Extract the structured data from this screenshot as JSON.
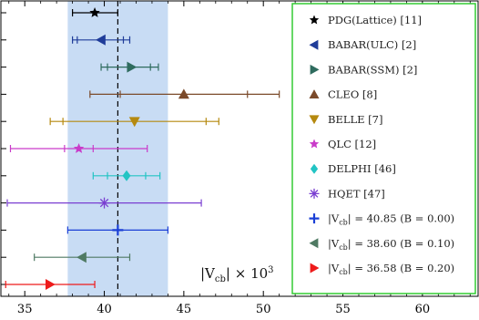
{
  "chart_data": {
    "type": "scatter",
    "xlim": [
      33.5,
      63.5
    ],
    "xticks": [
      35,
      40,
      45,
      50,
      55,
      60
    ],
    "band": {
      "from": 37.7,
      "to": 44.0,
      "color": "#c8dcf4"
    },
    "reference_line": {
      "x": 40.85
    },
    "annotation": "|V_cb| × 10^3",
    "legend": {
      "position": "right",
      "border_color": "#33cc33"
    },
    "series": [
      {
        "name": "PDG(Lattice) [11]",
        "marker": "star",
        "color": "#000000",
        "value": 39.4,
        "err_low": 38.0,
        "err_high": 40.85,
        "inner_low": null,
        "inner_high": null
      },
      {
        "name": "BABAR(ULC) [2]",
        "marker": "triangle-left",
        "color": "#1f3c99",
        "value": 39.8,
        "err_low": 38.0,
        "err_high": 41.6,
        "inner_low": 38.3,
        "inner_high": 41.2
      },
      {
        "name": "BABAR(SSM) [2]",
        "marker": "triangle-right",
        "color": "#2e6b5e",
        "value": 41.7,
        "err_low": 39.8,
        "err_high": 43.4,
        "inner_low": 40.2,
        "inner_high": 42.9
      },
      {
        "name": "CLEO [8]",
        "marker": "triangle-up",
        "color": "#7b4a2a",
        "value": 45.0,
        "err_low": 39.1,
        "err_high": 51.0,
        "inner_low": 41.0,
        "inner_high": 49.0
      },
      {
        "name": "BELLE [7]",
        "marker": "triangle-down",
        "color": "#b5890f",
        "value": 41.9,
        "err_low": 36.6,
        "err_high": 47.2,
        "inner_low": 37.4,
        "inner_high": 46.4
      },
      {
        "name": "QLC [12]",
        "marker": "star",
        "color": "#c93bc9",
        "value": 38.4,
        "err_low": 34.1,
        "err_high": 42.7,
        "inner_low": 37.5,
        "inner_high": 39.3
      },
      {
        "name": "DELPHI [46]",
        "marker": "diamond",
        "color": "#22c4c4",
        "value": 41.4,
        "err_low": 39.3,
        "err_high": 43.5,
        "inner_low": 40.2,
        "inner_high": 42.6
      },
      {
        "name": "HQET [47]",
        "marker": "asterisk",
        "color": "#7a3fd1",
        "value": 40.0,
        "err_low": 33.9,
        "err_high": 46.1,
        "inner_low": null,
        "inner_high": null
      },
      {
        "name": "|V_cb| = 40.85 (B = 0.00)",
        "marker": "plus",
        "color": "#1a3fd6",
        "value": 40.85,
        "err_low": 37.7,
        "err_high": 44.0,
        "inner_low": null,
        "inner_high": null
      },
      {
        "name": "|V_cb| = 38.60 (B = 0.10)",
        "marker": "triangle-left",
        "color": "#4f7a63",
        "value": 38.6,
        "err_low": 35.6,
        "err_high": 41.6,
        "inner_low": null,
        "inner_high": null
      },
      {
        "name": "|V_cb| = 36.58 (B = 0.20)",
        "marker": "triangle-right",
        "color": "#ee1b1b",
        "value": 36.58,
        "err_low": 33.8,
        "err_high": 39.4,
        "inner_low": null,
        "inner_high": null
      }
    ]
  }
}
